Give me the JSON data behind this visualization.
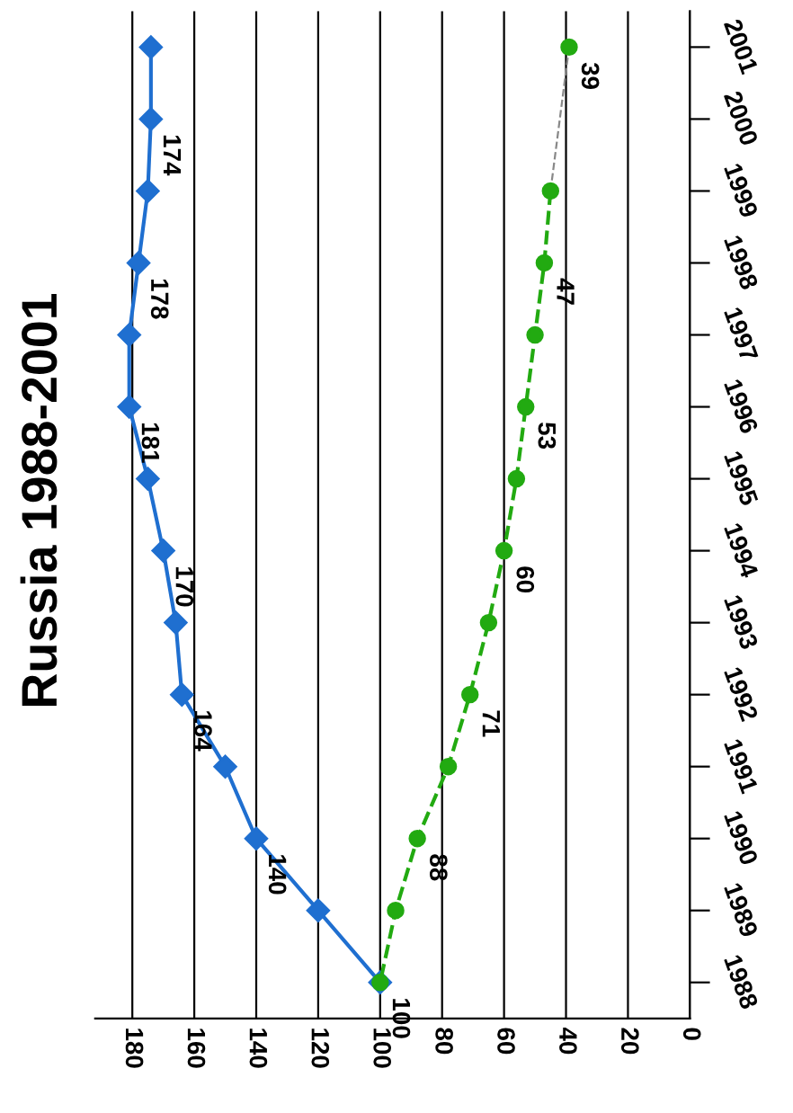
{
  "chart_data": {
    "type": "line",
    "title": "Russia 1988-2001",
    "orientation": "horizontal",
    "categories": [
      "2001",
      "2000",
      "1999",
      "1998",
      "1997",
      "1996",
      "1995",
      "1994",
      "1993",
      "1992",
      "1991",
      "1990",
      "1989",
      "1988"
    ],
    "series": [
      {
        "color": "#1f6fd0",
        "marker": "diamond",
        "line_style": "solid",
        "values": [
          174,
          174,
          175,
          178,
          181,
          181,
          175,
          170,
          166,
          164,
          150,
          140,
          120,
          100
        ],
        "value_labels": [
          null,
          "174",
          null,
          "178",
          null,
          "181",
          null,
          "170",
          null,
          "164",
          null,
          "140",
          null,
          "100"
        ]
      },
      {
        "color": "#22aa11",
        "marker": "circle",
        "line_style": "dashed",
        "values": [
          39,
          null,
          45,
          47,
          50,
          53,
          56,
          60,
          65,
          71,
          78,
          88,
          95,
          100
        ],
        "value_labels": [
          "39",
          null,
          null,
          "47",
          null,
          "53",
          null,
          "60",
          null,
          "71",
          null,
          "88",
          null,
          null
        ]
      }
    ],
    "xlim": [
      192,
      0
    ],
    "xticks": [
      180,
      160,
      140,
      120,
      100,
      80,
      60,
      40,
      20,
      0
    ],
    "grid": "x",
    "legend": false
  }
}
